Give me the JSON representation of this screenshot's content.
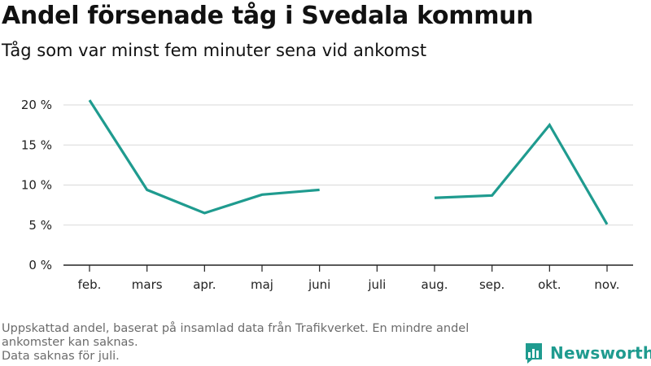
{
  "header": {
    "title": "Andel försenade tåg i Svedala kommun",
    "subtitle": "Tåg som var minst fem minuter sena vid ankomst"
  },
  "footnote": {
    "line1": "Uppskattad andel, baserat på insamlad data från Trafikverket. En mindre andel ankomster kan saknas.",
    "line2": "Data saknas för juli."
  },
  "brand": {
    "name": "Newsworthy",
    "color": "#1f9b8f",
    "icon": "bar-chart-bubble-icon"
  },
  "chart_data": {
    "type": "line",
    "categories": [
      "feb.",
      "mars",
      "apr.",
      "maj",
      "juni",
      "juli",
      "aug.",
      "sep.",
      "okt.",
      "nov."
    ],
    "series": [
      {
        "values": [
          20.6,
          9.4,
          6.5,
          8.8,
          9.4,
          null,
          8.4,
          8.7,
          17.5,
          5.1
        ],
        "color": "#1f9b8f"
      }
    ],
    "ylim": [
      0,
      20
    ],
    "yticks": [
      0,
      5,
      10,
      15,
      20
    ],
    "ytick_labels": [
      "0 %",
      "5 %",
      "10 %",
      "15 %",
      "20 %"
    ],
    "grid": true,
    "xlabel": "",
    "ylabel": ""
  }
}
